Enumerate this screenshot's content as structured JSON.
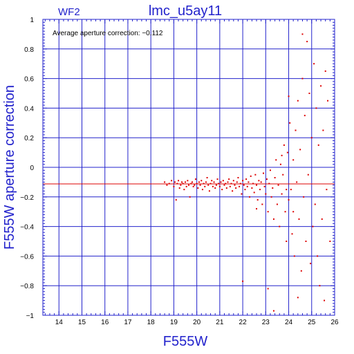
{
  "chart_data": {
    "type": "scatter",
    "title": "lmc_u5ay11",
    "chip_label": "WF2",
    "annotation": "Average aperture correction: −0.112",
    "xlabel": "F555W",
    "ylabel": "F555W aperture correction",
    "xlim": [
      13.3,
      26
    ],
    "ylim": [
      -1,
      1
    ],
    "x_ticks": [
      14,
      15,
      16,
      17,
      18,
      19,
      20,
      21,
      22,
      23,
      24,
      25,
      26
    ],
    "y_ticks": [
      -1,
      -0.8,
      -0.6,
      -0.4,
      -0.2,
      0,
      0.2,
      0.4,
      0.6,
      0.8,
      1
    ],
    "x_tick_labels": [
      "14",
      "15",
      "16",
      "17",
      "18",
      "19",
      "20",
      "21",
      "22",
      "23",
      "24",
      "25",
      "26"
    ],
    "y_tick_labels": [
      "−1",
      "−0.8",
      "−0.6",
      "−0.4",
      "−0.2",
      "0",
      "0.2",
      "0.4",
      "0.6",
      "0.8",
      "1"
    ],
    "grid": true,
    "reference_line": {
      "y": -0.112,
      "color": "#dd0000"
    },
    "colors": {
      "axes": "#2222cc",
      "points": "#dd0000",
      "text": "#000000"
    },
    "points": [
      [
        18.6,
        -0.1
      ],
      [
        18.7,
        -0.12
      ],
      [
        18.8,
        -0.11
      ],
      [
        18.9,
        -0.09
      ],
      [
        19.0,
        -0.13
      ],
      [
        19.05,
        -0.1
      ],
      [
        19.1,
        -0.22
      ],
      [
        19.15,
        -0.11
      ],
      [
        19.2,
        -0.09
      ],
      [
        19.25,
        -0.14
      ],
      [
        19.3,
        -0.12
      ],
      [
        19.35,
        -0.1
      ],
      [
        19.4,
        -0.11
      ],
      [
        19.45,
        -0.15
      ],
      [
        19.5,
        -0.1
      ],
      [
        19.55,
        -0.13
      ],
      [
        19.6,
        -0.09
      ],
      [
        19.65,
        -0.12
      ],
      [
        19.7,
        -0.2
      ],
      [
        19.75,
        -0.11
      ],
      [
        19.8,
        -0.1
      ],
      [
        19.85,
        -0.13
      ],
      [
        19.9,
        -0.12
      ],
      [
        19.95,
        -0.08
      ],
      [
        20.0,
        -0.11
      ],
      [
        20.05,
        -0.14
      ],
      [
        20.1,
        -0.1
      ],
      [
        20.15,
        -0.12
      ],
      [
        20.2,
        -0.09
      ],
      [
        20.25,
        -0.15
      ],
      [
        20.3,
        -0.11
      ],
      [
        20.35,
        -0.13
      ],
      [
        20.4,
        -0.1
      ],
      [
        20.45,
        -0.07
      ],
      [
        20.5,
        -0.12
      ],
      [
        20.55,
        -0.16
      ],
      [
        20.6,
        -0.11
      ],
      [
        20.65,
        -0.09
      ],
      [
        20.7,
        -0.13
      ],
      [
        20.75,
        -0.1
      ],
      [
        20.8,
        -0.14
      ],
      [
        20.85,
        -0.12
      ],
      [
        20.9,
        -0.08
      ],
      [
        20.95,
        -0.11
      ],
      [
        21.0,
        -0.13
      ],
      [
        21.05,
        -0.1
      ],
      [
        21.1,
        -0.15
      ],
      [
        21.15,
        -0.09
      ],
      [
        21.2,
        -0.12
      ],
      [
        21.25,
        -0.11
      ],
      [
        21.3,
        -0.14
      ],
      [
        21.35,
        -0.1
      ],
      [
        21.4,
        -0.08
      ],
      [
        21.45,
        -0.13
      ],
      [
        21.5,
        -0.11
      ],
      [
        21.55,
        -0.16
      ],
      [
        21.6,
        -0.09
      ],
      [
        21.65,
        -0.12
      ],
      [
        21.7,
        -0.14
      ],
      [
        21.75,
        -0.1
      ],
      [
        21.8,
        -0.07
      ],
      [
        21.85,
        -0.13
      ],
      [
        21.9,
        -0.11
      ],
      [
        21.95,
        -0.18
      ],
      [
        22.0,
        -0.09
      ],
      [
        22.05,
        -0.12
      ],
      [
        22.1,
        -0.15
      ],
      [
        22.15,
        -0.08
      ],
      [
        22.2,
        -0.13
      ],
      [
        22.25,
        -0.1
      ],
      [
        22.3,
        -0.2
      ],
      [
        22.35,
        -0.06
      ],
      [
        22.4,
        -0.14
      ],
      [
        22.45,
        -0.11
      ],
      [
        22.5,
        -0.17
      ],
      [
        22.55,
        -0.05
      ],
      [
        22.6,
        -0.12
      ],
      [
        22.65,
        -0.22
      ],
      [
        22.7,
        -0.09
      ],
      [
        22.75,
        -0.15
      ],
      [
        22.8,
        -0.1
      ],
      [
        22.85,
        -0.25
      ],
      [
        22.9,
        -0.04
      ],
      [
        22.95,
        -0.13
      ],
      [
        23.0,
        -0.18
      ],
      [
        23.05,
        -0.08
      ],
      [
        23.1,
        -0.3
      ],
      [
        23.15,
        -0.11
      ],
      [
        23.2,
        -0.02
      ],
      [
        23.25,
        -0.2
      ],
      [
        23.3,
        -0.14
      ],
      [
        23.35,
        -0.35
      ],
      [
        23.4,
        -0.07
      ],
      [
        23.45,
        0.05
      ],
      [
        23.5,
        -0.25
      ],
      [
        23.55,
        -0.12
      ],
      [
        23.6,
        -0.4
      ],
      [
        23.65,
        0.02
      ],
      [
        23.7,
        -0.18
      ],
      [
        23.75,
        -0.05
      ],
      [
        23.8,
        0.15
      ],
      [
        23.85,
        -0.3
      ],
      [
        23.9,
        -0.5
      ],
      [
        23.95,
        0.1
      ],
      [
        24.0,
        -0.22
      ],
      [
        24.05,
        0.3
      ],
      [
        24.1,
        -0.15
      ],
      [
        24.15,
        -0.45
      ],
      [
        24.2,
        0.05
      ],
      [
        24.25,
        -0.6
      ],
      [
        24.3,
        0.25
      ],
      [
        24.35,
        -0.1
      ],
      [
        24.4,
        0.45
      ],
      [
        24.45,
        -0.35
      ],
      [
        24.5,
        0.12
      ],
      [
        24.55,
        -0.7
      ],
      [
        24.6,
        0.6
      ],
      [
        24.65,
        -0.2
      ],
      [
        24.7,
        0.35
      ],
      [
        24.75,
        -0.5
      ],
      [
        24.8,
        0.85
      ],
      [
        24.85,
        -0.05
      ],
      [
        24.9,
        0.5
      ],
      [
        24.95,
        -0.65
      ],
      [
        25.0,
        0.2
      ],
      [
        25.05,
        -0.4
      ],
      [
        25.1,
        0.7
      ],
      [
        25.15,
        -0.25
      ],
      [
        25.2,
        0.4
      ],
      [
        25.25,
        -0.6
      ],
      [
        25.3,
        0.15
      ],
      [
        25.35,
        -0.8
      ],
      [
        25.4,
        0.55
      ],
      [
        25.45,
        -0.35
      ],
      [
        25.5,
        0.25
      ],
      [
        25.55,
        -0.9
      ],
      [
        25.6,
        0.65
      ],
      [
        25.65,
        -0.15
      ],
      [
        25.7,
        0.45
      ],
      [
        25.8,
        -0.5
      ],
      [
        22.0,
        -0.77
      ],
      [
        23.1,
        -0.82
      ],
      [
        24.4,
        -0.88
      ],
      [
        23.35,
        -0.97
      ],
      [
        24.6,
        0.9
      ],
      [
        23.7,
        0.08
      ],
      [
        24.0,
        0.48
      ],
      [
        23.9,
        -0.15
      ],
      [
        22.6,
        -0.28
      ],
      [
        24.2,
        -0.3
      ]
    ]
  }
}
